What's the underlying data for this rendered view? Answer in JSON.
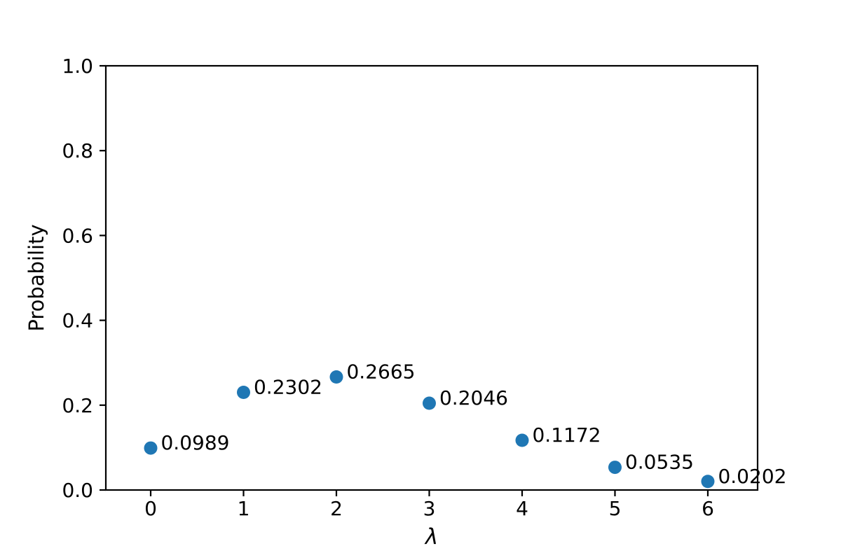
{
  "chart_data": {
    "type": "scatter",
    "title": "",
    "xlabel": "λ",
    "ylabel": "Probability",
    "x": [
      0,
      1,
      2,
      3,
      4,
      5,
      6
    ],
    "values": [
      0.0989,
      0.2302,
      0.2665,
      0.2046,
      0.1172,
      0.0535,
      0.0202
    ],
    "point_labels": [
      "0.0989",
      "0.2302",
      "0.2665",
      "0.2046",
      "0.1172",
      "0.0535",
      "0.0202"
    ],
    "x_ticks": [
      0,
      1,
      2,
      3,
      4,
      5,
      6
    ],
    "x_tick_labels": [
      "0",
      "1",
      "2",
      "3",
      "4",
      "5",
      "6"
    ],
    "y_ticks": [
      0.0,
      0.2,
      0.4,
      0.6,
      0.8,
      1.0
    ],
    "y_tick_labels": [
      "0.0",
      "0.2",
      "0.4",
      "0.6",
      "0.8",
      "1.0"
    ],
    "xlim": [
      -0.483,
      6.536
    ],
    "ylim": [
      0,
      1
    ],
    "grid": false,
    "legend": "none",
    "marker_color": "#1f77b4",
    "axis_color": "#000000",
    "background": "#ffffff"
  }
}
